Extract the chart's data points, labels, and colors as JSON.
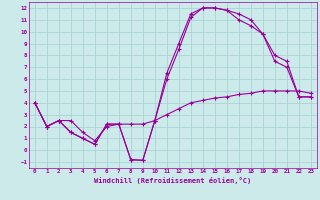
{
  "xlabel": "Windchill (Refroidissement éolien,°C)",
  "bg_color": "#cceaea",
  "grid_color": "#aad4d4",
  "line_color": "#990099",
  "xlim": [
    -0.5,
    23.5
  ],
  "ylim": [
    -1.5,
    12.5
  ],
  "xticks": [
    0,
    1,
    2,
    3,
    4,
    5,
    6,
    7,
    8,
    9,
    10,
    11,
    12,
    13,
    14,
    15,
    16,
    17,
    18,
    19,
    20,
    21,
    22,
    23
  ],
  "yticks": [
    -1,
    0,
    1,
    2,
    3,
    4,
    5,
    6,
    7,
    8,
    9,
    10,
    11,
    12
  ],
  "line1_x": [
    0,
    1,
    2,
    3,
    4,
    5,
    6,
    7,
    8,
    9,
    10,
    11,
    12,
    13,
    14,
    15,
    16,
    17,
    18,
    19,
    20,
    21,
    22,
    23
  ],
  "line1_y": [
    4.0,
    2.0,
    2.5,
    1.5,
    1.0,
    0.5,
    2.2,
    2.2,
    -0.8,
    -0.85,
    2.5,
    6.5,
    9.0,
    11.5,
    12.0,
    12.0,
    11.8,
    11.5,
    11.0,
    9.8,
    8.0,
    7.5,
    4.5,
    4.5
  ],
  "line2_x": [
    0,
    1,
    2,
    3,
    4,
    5,
    6,
    7,
    8,
    9,
    10,
    11,
    12,
    13,
    14,
    15,
    16,
    17,
    18,
    19,
    20,
    21,
    22,
    23
  ],
  "line2_y": [
    4.0,
    2.0,
    2.5,
    1.5,
    1.0,
    0.5,
    2.2,
    2.2,
    -0.8,
    -0.85,
    2.5,
    6.0,
    8.5,
    11.2,
    12.0,
    12.0,
    11.8,
    11.0,
    10.5,
    9.8,
    7.5,
    7.0,
    4.5,
    4.5
  ],
  "line3_x": [
    0,
    1,
    2,
    3,
    4,
    5,
    6,
    7,
    8,
    9,
    10,
    11,
    12,
    13,
    14,
    15,
    16,
    17,
    18,
    19,
    20,
    21,
    22,
    23
  ],
  "line3_y": [
    4.0,
    2.0,
    2.5,
    2.5,
    1.5,
    0.8,
    2.0,
    2.2,
    2.2,
    2.2,
    2.5,
    3.0,
    3.5,
    4.0,
    4.2,
    4.4,
    4.5,
    4.7,
    4.8,
    5.0,
    5.0,
    5.0,
    5.0,
    4.8
  ]
}
